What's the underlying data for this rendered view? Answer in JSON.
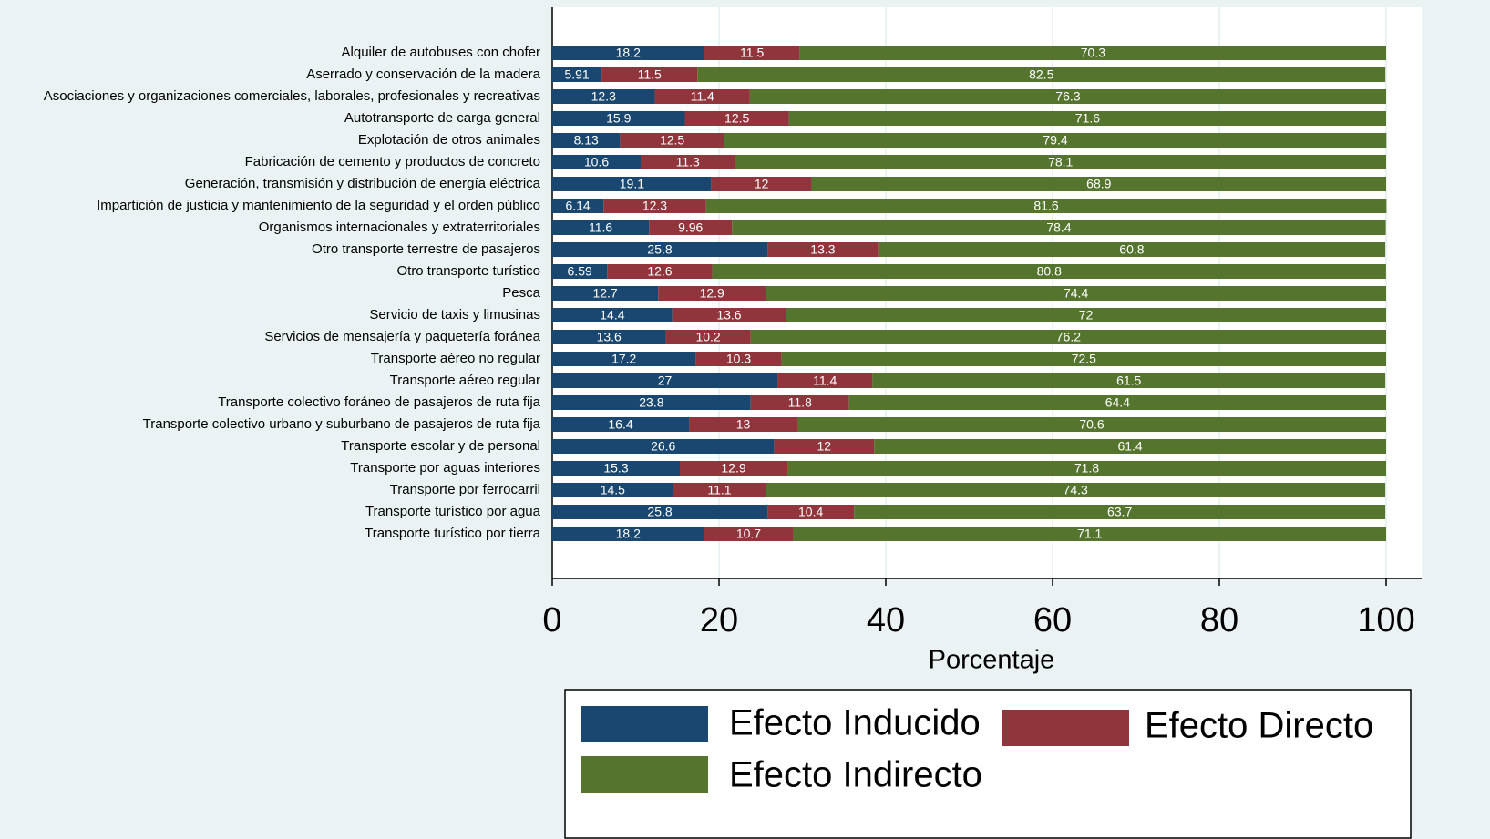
{
  "chart_data": {
    "type": "stacked_barh",
    "xlabel": "Porcentaje",
    "xlim": [
      0,
      100
    ],
    "xticks": [
      0,
      20,
      40,
      60,
      80,
      100
    ],
    "grid": true,
    "categories": [
      "Alquiler de autobuses con chofer",
      "Aserrado y conservación de la madera",
      "Asociaciones y organizaciones comerciales, laborales, profesionales y recreativas",
      "Autotransporte de carga general",
      "Explotación de otros animales",
      "Fabricación de cemento y productos de concreto",
      "Generación, transmisión y distribución de energía eléctrica",
      "Impartición de justicia y mantenimiento de la seguridad y el orden público",
      "Organismos internacionales y extraterritoriales",
      "Otro transporte terrestre de pasajeros",
      "Otro transporte turístico",
      "Pesca",
      "Servicio de taxis y limusinas",
      "Servicios de mensajería y paquetería foránea",
      "Transporte aéreo no regular",
      "Transporte aéreo regular",
      "Transporte colectivo foráneo de pasajeros de ruta fija",
      "Transporte colectivo urbano y suburbano de pasajeros de ruta fija",
      "Transporte escolar y de personal",
      "Transporte por aguas interiores",
      "Transporte por ferrocarril",
      "Transporte turístico por agua",
      "Transporte turístico por tierra"
    ],
    "series": [
      {
        "name": "Efecto Inducido",
        "color": "#1a476f",
        "values": [
          18.2,
          5.91,
          12.3,
          15.9,
          8.13,
          10.6,
          19.1,
          6.14,
          11.6,
          25.8,
          6.59,
          12.7,
          14.4,
          13.6,
          17.2,
          27,
          23.8,
          16.4,
          26.6,
          15.3,
          14.5,
          25.8,
          18.2
        ]
      },
      {
        "name": "Efecto Directo",
        "color": "#90353b",
        "values": [
          11.5,
          11.5,
          11.4,
          12.5,
          12.5,
          11.3,
          12,
          12.3,
          9.96,
          13.3,
          12.6,
          12.9,
          13.6,
          10.2,
          10.3,
          11.4,
          11.8,
          13,
          12,
          12.9,
          11.1,
          10.4,
          10.7
        ]
      },
      {
        "name": "Efecto Indirecto",
        "color": "#55752f",
        "values": [
          70.3,
          82.5,
          76.3,
          71.6,
          79.4,
          78.1,
          68.9,
          81.6,
          78.4,
          60.8,
          80.8,
          74.4,
          72,
          76.2,
          72.5,
          61.5,
          64.4,
          70.6,
          61.4,
          71.8,
          74.3,
          63.7,
          71.1
        ]
      }
    ]
  }
}
